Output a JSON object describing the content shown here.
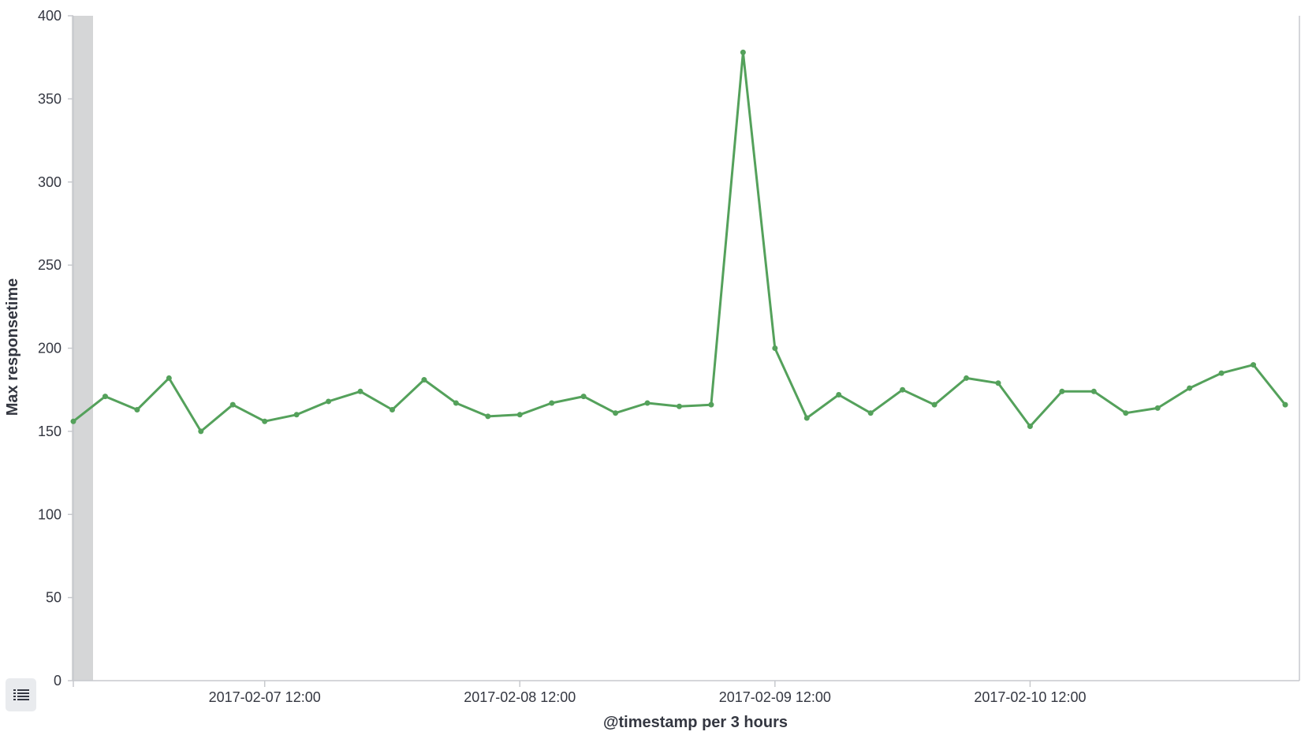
{
  "chart_data": {
    "type": "line",
    "title": "",
    "xlabel": "@timestamp per 3 hours",
    "ylabel": "Max responsetime",
    "ylim": [
      0,
      400
    ],
    "yticks": [
      0,
      50,
      100,
      150,
      200,
      250,
      300,
      350,
      400
    ],
    "x_unit": "3 hours",
    "x_ticks": [
      "2017-02-07 12:00",
      "2017-02-08 12:00",
      "2017-02-09 12:00",
      "2017-02-10 12:00"
    ],
    "x": [
      "2017-02-06 18:00",
      "2017-02-06 21:00",
      "2017-02-07 00:00",
      "2017-02-07 03:00",
      "2017-02-07 06:00",
      "2017-02-07 09:00",
      "2017-02-07 12:00",
      "2017-02-07 15:00",
      "2017-02-07 18:00",
      "2017-02-07 21:00",
      "2017-02-08 00:00",
      "2017-02-08 03:00",
      "2017-02-08 06:00",
      "2017-02-08 09:00",
      "2017-02-08 12:00",
      "2017-02-08 15:00",
      "2017-02-08 18:00",
      "2017-02-08 21:00",
      "2017-02-09 00:00",
      "2017-02-09 03:00",
      "2017-02-09 06:00",
      "2017-02-09 09:00",
      "2017-02-09 12:00",
      "2017-02-09 15:00",
      "2017-02-09 18:00",
      "2017-02-09 21:00",
      "2017-02-10 00:00",
      "2017-02-10 03:00",
      "2017-02-10 06:00",
      "2017-02-10 09:00",
      "2017-02-10 12:00",
      "2017-02-10 15:00",
      "2017-02-10 18:00",
      "2017-02-10 21:00",
      "2017-02-11 00:00",
      "2017-02-11 03:00",
      "2017-02-11 06:00",
      "2017-02-11 09:00",
      "2017-02-11 12:00"
    ],
    "series": [
      {
        "values": [
          156,
          171,
          163,
          182,
          150,
          166,
          156,
          160,
          168,
          174,
          163,
          181,
          167,
          159,
          160,
          167,
          171,
          161,
          167,
          165,
          166,
          378,
          200,
          158,
          172,
          161,
          175,
          166,
          182,
          179,
          153,
          174,
          174,
          161,
          164,
          176,
          185,
          190,
          166
        ],
        "color": "#54a15b"
      }
    ],
    "grid": false,
    "legend": "none"
  },
  "legend_toggle": {
    "icon": "list-icon"
  }
}
